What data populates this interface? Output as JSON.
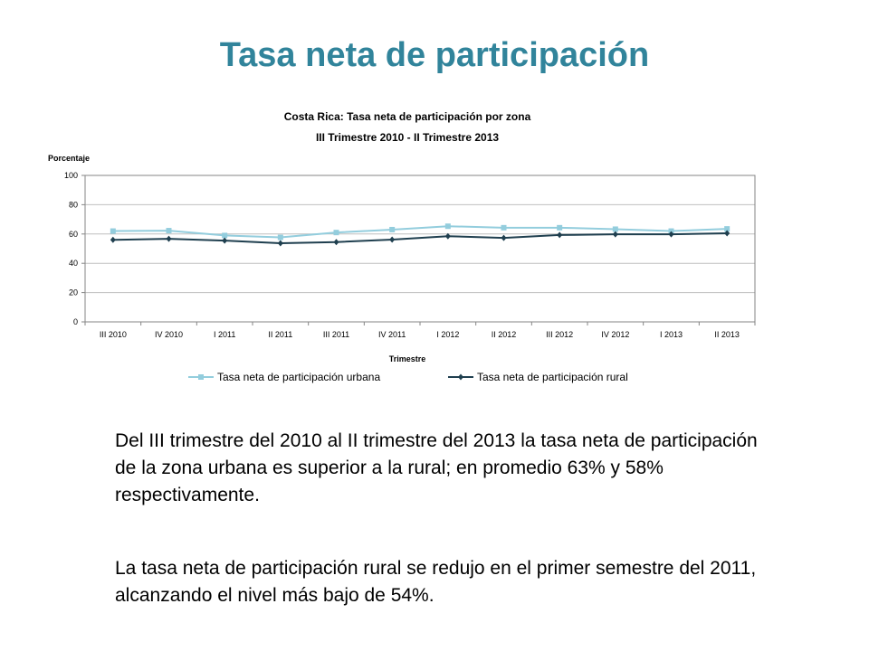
{
  "slide": {
    "title": "Tasa neta de participación",
    "paragraphs": [
      "Del III trimestre del 2010 al II trimestre del 2013 la tasa neta de participación de la zona urbana es superior a la rural; en promedio 63% y 58% respectivamente.",
      "La tasa neta de participación rural se redujo en el primer semestre del 2011, alcanzando el nivel más bajo de 54%."
    ]
  },
  "chart_data": {
    "type": "line",
    "title": "Costa Rica: Tasa neta de participación por zona",
    "subtitle": "III Trimestre 2010 - II Trimestre 2013",
    "ylabel": "Porcentaje",
    "xlabel": "Trimestre",
    "ylim": [
      0,
      100
    ],
    "yticks": [
      0,
      20,
      40,
      60,
      80,
      100
    ],
    "grid": true,
    "legend_position": "bottom",
    "categories": [
      "III 2010",
      "IV 2010",
      "I 2011",
      "II 2011",
      "III 2011",
      "IV 2011",
      "I 2012",
      "II 2012",
      "III 2012",
      "IV 2012",
      "I 2013",
      "II 2013"
    ],
    "series": [
      {
        "name": "Tasa neta de participación urbana",
        "color": "#93cddd",
        "marker": "square",
        "values": [
          62,
          62.3,
          59,
          57.7,
          61,
          63,
          65.3,
          64.3,
          64.3,
          63.3,
          62,
          63.5
        ]
      },
      {
        "name": "Tasa neta de participación rural",
        "color": "#1f3f4f",
        "marker": "diamond",
        "values": [
          56,
          56.7,
          55.5,
          53.7,
          54.5,
          56.2,
          58.5,
          57.3,
          59.3,
          59.8,
          59.8,
          60.5
        ]
      }
    ]
  }
}
